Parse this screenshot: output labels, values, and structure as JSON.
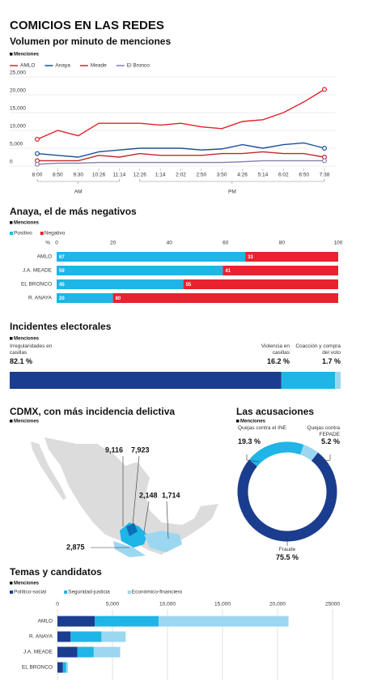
{
  "title": "COMICIOS EN LAS REDES",
  "chart_data": [
    {
      "type": "line",
      "title": "Volumen por minuto de menciones",
      "units": "Menciones",
      "categories": [
        "8:00",
        "8:50",
        "9:30",
        "10:26",
        "11:14",
        "12:26",
        "1:14",
        "2:02",
        "2:50",
        "3:50",
        "4:26",
        "5:14",
        "6:02",
        "6:50",
        "7:38"
      ],
      "x_groups": [
        "AM",
        "PM"
      ],
      "series": [
        {
          "name": "AMLO",
          "color": "#e2222c",
          "values": [
            7500,
            10000,
            8500,
            12000,
            12000,
            12000,
            11500,
            12000,
            11000,
            10500,
            12500,
            13000,
            15000,
            18000,
            21500
          ]
        },
        {
          "name": "Anaya",
          "color": "#1b4f9c",
          "values": [
            3500,
            3000,
            2500,
            4000,
            4500,
            5000,
            5000,
            5000,
            4500,
            4800,
            6000,
            5000,
            6000,
            6500,
            5000
          ]
        },
        {
          "name": "Meade",
          "color": "#c1272d",
          "values": [
            1500,
            1500,
            1500,
            3000,
            2500,
            3500,
            3000,
            3000,
            3000,
            3500,
            3500,
            4000,
            3500,
            3500,
            2500
          ]
        },
        {
          "name": "El Bronco",
          "color": "#8a7bb0",
          "values": [
            500,
            800,
            800,
            1000,
            1000,
            1000,
            1000,
            1000,
            1000,
            1000,
            1200,
            1500,
            1500,
            1500,
            1500
          ]
        }
      ],
      "ylim": [
        0,
        25000
      ],
      "yticks": [
        0,
        {
          "value": 5000,
          "label": "5,000"
        },
        {
          "value": 10000,
          "label": "10,000"
        },
        {
          "value": 15000,
          "label": "15,000"
        },
        {
          "value": 20000,
          "label": "20,000"
        },
        {
          "value": 25000,
          "label": "25,000"
        }
      ],
      "grid": true
    },
    {
      "type": "bar",
      "title": "Anaya, el de más negativos",
      "units": "Menciones",
      "x_label": "%",
      "categories": [
        "AMLO",
        "J.A. MEADE",
        "EL BRONCO",
        "R. ANAYA"
      ],
      "series": [
        {
          "name": "Positivo",
          "color": "#1fb5e6",
          "values": [
            67,
            59,
            45,
            20
          ]
        },
        {
          "name": "Negativo",
          "color": "#e8222e",
          "values": [
            33,
            41,
            55,
            80
          ]
        }
      ],
      "xlim": [
        0,
        100
      ],
      "xticks": [
        0,
        20,
        40,
        60,
        80,
        100
      ],
      "grid": false,
      "data_labels": true
    },
    {
      "type": "bar",
      "title": "Incidentes electorales",
      "units": "Menciones",
      "series": [
        {
          "name": "Irregularidades en casillas",
          "color": "#1b3d8f",
          "values": [
            82.1
          ],
          "value_labels": [
            "82.1 %"
          ]
        },
        {
          "name": "Violencia en casillas",
          "color": "#1fb5e6",
          "values": [
            16.2
          ],
          "value_labels": [
            "16.2 %"
          ]
        },
        {
          "name": "Coacción y compra del voto",
          "color": "#9bd7f0",
          "values": [
            1.7
          ],
          "value_labels": [
            "1.7 %"
          ]
        }
      ]
    },
    {
      "type": "donut",
      "title": "Las acusaciones",
      "units": "Menciones",
      "categories": [
        "Quejas contra el INE",
        "Quejas contra FEPADE",
        "Fraude"
      ],
      "values": [
        19.3,
        5.2,
        75.5
      ],
      "value_labels": [
        "19.3 %",
        "5.2 %",
        "75.5 %"
      ],
      "colors": [
        "#1fb5e6",
        "#9bd7f0",
        "#1b3d8f"
      ]
    },
    {
      "type": "bar",
      "title": "Temas y candidatos",
      "units": "Menciones",
      "categories": [
        "AMLO",
        "R. ANAYA",
        "J.A. MEADE",
        "EL BRONCO"
      ],
      "series": [
        {
          "name": "Político-social",
          "color": "#1b3d8f",
          "values": [
            3400,
            1200,
            1800,
            500
          ]
        },
        {
          "name": "Seguridad-justicia",
          "color": "#1fb5e6",
          "values": [
            5800,
            2800,
            1500,
            300
          ]
        },
        {
          "name": "Económico-financiero",
          "color": "#9bd7f0",
          "values": [
            11800,
            2200,
            2400,
            150
          ]
        }
      ],
      "xlim": [
        0,
        25000
      ],
      "xticks": [
        0,
        {
          "value": 5000,
          "label": "5,000"
        },
        {
          "value": 10000,
          "label": "10,000"
        },
        {
          "value": 15000,
          "label": "15,000"
        },
        {
          "value": 20000,
          "label": "20,000"
        },
        25000
      ],
      "grid": true
    }
  ],
  "map": {
    "title": "CDMX, con más incidencia delictiva",
    "units": "Menciones",
    "labels": [
      "9,116",
      "7,923",
      "2,148",
      "1,714",
      "2,875"
    ]
  }
}
